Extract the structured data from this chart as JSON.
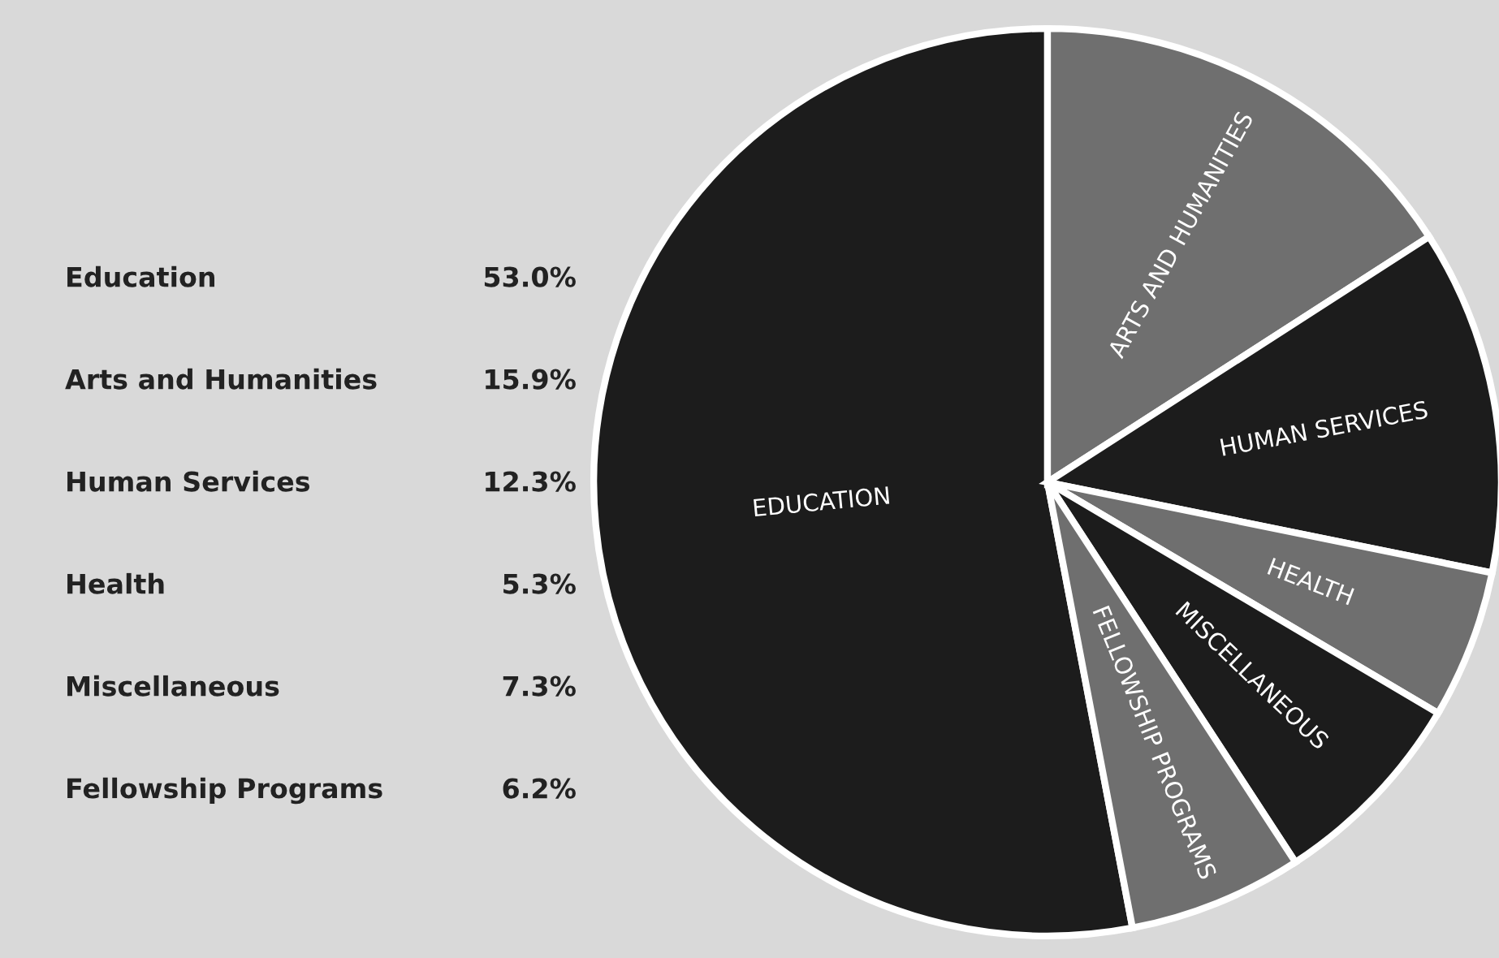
{
  "chart_data": {
    "type": "pie",
    "categories": [
      "EDUCATION",
      "ARTS AND HUMANITIES",
      "HUMAN SERVICES",
      "HEALTH",
      "MISCELLANEOUS",
      "FELLOWSHIP PROGRAMS"
    ],
    "values": [
      53.0,
      15.9,
      12.3,
      5.3,
      7.3,
      6.2
    ],
    "colors": [
      "#1c1c1c",
      "#6f6f6f",
      "#1c1c1c",
      "#6f6f6f",
      "#1c1c1c",
      "#6f6f6f"
    ],
    "annotations": [
      "Education",
      "53.0%",
      "Arts and Humanities",
      "15.9%",
      "Human Services",
      "12.3%",
      "Health",
      "5.3%",
      "Miscellaneous",
      "7.3%",
      "Fellowship Programs",
      "6.2%"
    ]
  }
}
